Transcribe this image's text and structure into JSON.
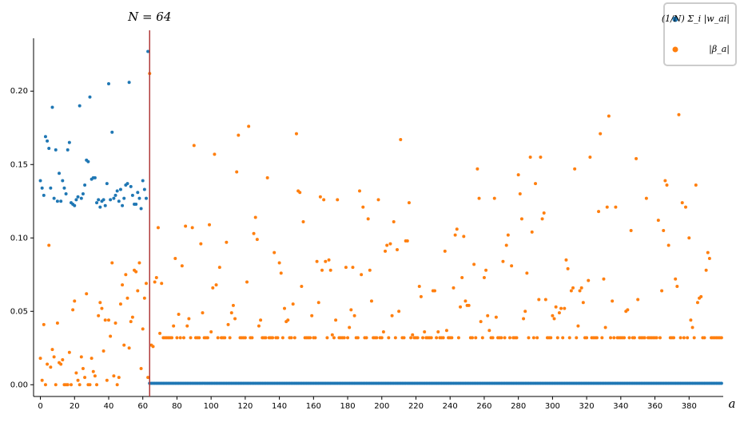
{
  "chart_data": {
    "type": "scatter",
    "x_label": "a",
    "legend": "upper right",
    "xlim": [
      -4,
      400
    ],
    "ylim": [
      -0.008,
      0.236
    ],
    "xticks": [
      0,
      20,
      40,
      60,
      80,
      100,
      120,
      140,
      160,
      180,
      200,
      220,
      240,
      260,
      280,
      300,
      320,
      340,
      360,
      380
    ],
    "yticks": [
      {
        "value": 0,
        "label": "0.00"
      },
      {
        "value": 0.05,
        "label": "0.05"
      },
      {
        "value": 0.1,
        "label": "0.10"
      },
      {
        "value": 0.15,
        "label": "0.15"
      },
      {
        "value": 0.2,
        "label": "0.20"
      }
    ],
    "vline": {
      "x": 64,
      "label": "N = 64",
      "color": "#b03a3a"
    },
    "x": [
      0,
      1,
      2,
      3,
      4,
      5,
      6,
      7,
      8,
      9,
      10,
      11,
      12,
      13,
      14,
      15,
      16,
      17,
      18,
      19,
      20,
      21,
      22,
      23,
      24,
      25,
      26,
      27,
      28,
      29,
      30,
      31,
      32,
      33,
      34,
      35,
      36,
      37,
      38,
      39,
      40,
      41,
      42,
      43,
      44,
      45,
      46,
      47,
      48,
      49,
      50,
      51,
      52,
      53,
      54,
      55,
      56,
      57,
      58,
      59,
      60,
      61,
      62,
      63,
      64,
      65,
      66,
      67,
      68,
      69,
      70,
      71,
      72,
      73,
      74,
      75,
      76,
      77,
      78,
      79,
      80,
      81,
      82,
      83,
      84,
      85,
      86,
      87,
      88,
      89,
      90,
      91,
      92,
      93,
      94,
      95,
      96,
      97,
      98,
      99,
      100,
      101,
      102,
      103,
      104,
      105,
      106,
      107,
      108,
      109,
      110,
      111,
      112,
      113,
      114,
      115,
      116,
      117,
      118,
      119,
      120,
      121,
      122,
      123,
      124,
      125,
      126,
      127,
      128,
      129,
      130,
      131,
      132,
      133,
      134,
      135,
      136,
      137,
      138,
      139,
      140,
      141,
      142,
      143,
      144,
      145,
      146,
      147,
      148,
      149,
      150,
      151,
      152,
      153,
      154,
      155,
      156,
      157,
      158,
      159,
      160,
      161,
      162,
      163,
      164,
      165,
      166,
      167,
      168,
      169,
      170,
      171,
      172,
      173,
      174,
      175,
      176,
      177,
      178,
      179,
      180,
      181,
      182,
      183,
      184,
      185,
      186,
      187,
      188,
      189,
      190,
      191,
      192,
      193,
      194,
      195,
      196,
      197,
      198,
      199,
      200,
      201,
      202,
      203,
      204,
      205,
      206,
      207,
      208,
      209,
      210,
      211,
      212,
      213,
      214,
      215,
      216,
      217,
      218,
      219,
      220,
      221,
      222,
      223,
      224,
      225,
      226,
      227,
      228,
      229,
      230,
      231,
      232,
      233,
      234,
      235,
      236,
      237,
      238,
      239,
      240,
      241,
      242,
      243,
      244,
      245,
      246,
      247,
      248,
      249,
      250,
      251,
      252,
      253,
      254,
      255,
      256,
      257,
      258,
      259,
      260,
      261,
      262,
      263,
      264,
      265,
      266,
      267,
      268,
      269,
      270,
      271,
      272,
      273,
      274,
      275,
      276,
      277,
      278,
      279,
      280,
      281,
      282,
      283,
      284,
      285,
      286,
      287,
      288,
      289,
      290,
      291,
      292,
      293,
      294,
      295,
      296,
      297,
      298,
      299,
      300,
      301,
      302,
      303,
      304,
      305,
      306,
      307,
      308,
      309,
      310,
      311,
      312,
      313,
      314,
      315,
      316,
      317,
      318,
      319,
      320,
      321,
      322,
      323,
      324,
      325,
      326,
      327,
      328,
      329,
      330,
      331,
      332,
      333,
      334,
      335,
      336,
      337,
      338,
      339,
      340,
      341,
      342,
      343,
      344,
      345,
      346,
      347,
      348,
      349,
      350,
      351,
      352,
      353,
      354,
      355,
      356,
      357,
      358,
      359,
      360,
      361,
      362,
      363,
      364,
      365,
      366,
      367,
      368,
      369,
      370,
      371,
      372,
      373,
      374,
      375,
      376,
      377,
      378,
      379,
      380,
      381,
      382,
      383,
      384,
      385,
      386,
      387,
      388,
      389,
      390,
      391,
      392,
      393,
      394,
      395,
      396,
      397,
      398,
      399
    ],
    "series": [
      {
        "name": "(1/N) Σ_i |w_ai|",
        "color": "#1f77b4",
        "values": [
          0.139,
          0.134,
          0.129,
          0.169,
          0.166,
          0.161,
          0.134,
          0.189,
          0.127,
          0.16,
          0.125,
          0.144,
          0.125,
          0.139,
          0.134,
          0.13,
          0.16,
          0.165,
          0.124,
          0.123,
          0.122,
          0.126,
          0.128,
          0.19,
          0.127,
          0.13,
          0.136,
          0.153,
          0.152,
          0.196,
          0.14,
          0.141,
          0.141,
          0.124,
          0.126,
          0.121,
          0.125,
          0.126,
          0.122,
          0.137,
          0.205,
          0.126,
          0.172,
          0.127,
          0.129,
          0.132,
          0.125,
          0.133,
          0.122,
          0.127,
          0.136,
          0.137,
          0.206,
          0.135,
          0.129,
          0.123,
          0.123,
          0.131,
          0.127,
          0.12,
          0.139,
          0.133,
          0.127,
          0.227,
          0.001,
          0.001,
          0.001,
          0.001,
          0.001,
          0.001,
          0.001,
          0.001,
          0.001,
          0.001,
          0.001,
          0.001,
          0.001,
          0.001,
          0.001,
          0.001,
          0.001,
          0.001,
          0.001,
          0.001,
          0.001,
          0.001,
          0.001,
          0.001,
          0.001,
          0.001,
          0.001,
          0.001,
          0.001,
          0.001,
          0.001,
          0.001,
          0.001,
          0.001,
          0.001,
          0.001,
          0.001,
          0.001,
          0.001,
          0.001,
          0.001,
          0.001,
          0.001,
          0.001,
          0.001,
          0.001,
          0.001,
          0.001,
          0.001,
          0.001,
          0.001,
          0.001,
          0.001,
          0.001,
          0.001,
          0.001,
          0.001,
          0.001,
          0.001,
          0.001,
          0.001,
          0.001,
          0.001,
          0.001,
          0.001,
          0.001,
          0.001,
          0.001,
          0.001,
          0.001,
          0.001,
          0.001,
          0.001,
          0.001,
          0.001,
          0.001,
          0.001,
          0.001,
          0.001,
          0.001,
          0.001,
          0.001,
          0.001,
          0.001,
          0.001,
          0.001,
          0.001,
          0.001,
          0.001,
          0.001,
          0.001,
          0.001,
          0.001,
          0.001,
          0.001,
          0.001,
          0.001,
          0.001,
          0.001,
          0.001,
          0.001,
          0.001,
          0.001,
          0.001,
          0.001,
          0.001,
          0.001,
          0.001,
          0.001,
          0.001,
          0.001,
          0.001,
          0.001,
          0.001,
          0.001,
          0.001,
          0.001,
          0.001,
          0.001,
          0.001,
          0.001,
          0.001,
          0.001,
          0.001,
          0.001,
          0.001,
          0.001,
          0.001,
          0.001,
          0.001,
          0.001,
          0.001,
          0.001,
          0.001,
          0.001,
          0.001,
          0.001,
          0.001,
          0.001,
          0.001,
          0.001,
          0.001,
          0.001,
          0.001,
          0.001,
          0.001,
          0.001,
          0.001,
          0.001,
          0.001,
          0.001,
          0.001,
          0.001,
          0.001,
          0.001,
          0.001,
          0.001,
          0.001,
          0.001,
          0.001,
          0.001,
          0.001,
          0.001,
          0.001,
          0.001,
          0.001,
          0.001,
          0.001,
          0.001,
          0.001,
          0.001,
          0.001,
          0.001,
          0.001,
          0.001,
          0.001,
          0.001,
          0.001,
          0.001,
          0.001,
          0.001,
          0.001,
          0.001,
          0.001,
          0.001,
          0.001,
          0.001,
          0.001,
          0.001,
          0.001,
          0.001,
          0.001,
          0.001,
          0.001,
          0.001,
          0.001,
          0.001,
          0.001,
          0.001,
          0.001,
          0.001,
          0.001,
          0.001,
          0.001,
          0.001,
          0.001,
          0.001,
          0.001,
          0.001,
          0.001,
          0.001,
          0.001,
          0.001,
          0.001,
          0.001,
          0.001,
          0.001,
          0.001,
          0.001,
          0.001,
          0.001,
          0.001,
          0.001,
          0.001,
          0.001,
          0.001,
          0.001,
          0.001,
          0.001,
          0.001,
          0.001,
          0.001,
          0.001,
          0.001,
          0.001,
          0.001,
          0.001,
          0.001,
          0.001,
          0.001,
          0.001,
          0.001,
          0.001,
          0.001,
          0.001,
          0.001,
          0.001,
          0.001,
          0.001,
          0.001,
          0.001,
          0.001,
          0.001,
          0.001,
          0.001,
          0.001,
          0.001,
          0.001,
          0.001,
          0.001,
          0.001,
          0.001,
          0.001,
          0.001,
          0.001,
          0.001,
          0.001,
          0.001,
          0.001,
          0.001,
          0.001,
          0.001,
          0.001,
          0.001,
          0.001,
          0.001,
          0.001,
          0.001,
          0.001,
          0.001,
          0.001,
          0.001,
          0.001,
          0.001,
          0.001,
          0.001,
          0.001,
          0.001,
          0.001,
          0.001,
          0.001,
          0.001,
          0.001,
          0.001,
          0.001,
          0.001,
          0.001,
          0.001,
          0.001,
          0.001,
          0.001,
          0.001,
          0.001,
          0.001,
          0.001,
          0.001,
          0.001,
          0.001,
          0.001,
          0.001,
          0.001,
          0.001,
          0.001,
          0.001,
          0.001,
          0.001,
          0.001,
          0.001,
          0.001,
          0.001,
          0.001,
          0.001,
          0.001,
          0.001,
          0.001,
          0.001,
          0.001,
          0.001,
          0.001,
          0.001,
          0.001,
          0.001,
          0.001,
          0.001,
          0.001,
          0.001
        ]
      },
      {
        "name": "|β_a|",
        "color": "#ff7f0e",
        "values": [
          0.018,
          0.003,
          0.041,
          0.0,
          0.014,
          0.095,
          0.012,
          0.024,
          0.019,
          0.0,
          0.042,
          0.015,
          0.014,
          0.017,
          0.0,
          0.0,
          0.0,
          0.022,
          0.0,
          0.051,
          0.057,
          0.008,
          0.003,
          0.0,
          0.019,
          0.011,
          0.005,
          0.062,
          0.0,
          0.0,
          0.018,
          0.009,
          0.006,
          0.0,
          0.047,
          0.056,
          0.052,
          0.023,
          0.044,
          0.003,
          0.044,
          0.033,
          0.083,
          0.006,
          0.042,
          0.0,
          0.005,
          0.055,
          0.068,
          0.027,
          0.075,
          0.059,
          0.025,
          0.043,
          0.046,
          0.078,
          0.077,
          0.064,
          0.083,
          0.011,
          0.038,
          0.059,
          0.069,
          0.005,
          0.212,
          0.027,
          0.026,
          0.07,
          0.073,
          0.107,
          0.035,
          0.069,
          0.032,
          0.032,
          0.032,
          0.032,
          0.032,
          0.032,
          0.04,
          0.086,
          0.032,
          0.048,
          0.032,
          0.081,
          0.032,
          0.108,
          0.04,
          0.045,
          0.032,
          0.107,
          0.163,
          0.032,
          0.032,
          0.032,
          0.096,
          0.049,
          0.032,
          0.032,
          0.032,
          0.109,
          0.036,
          0.066,
          0.157,
          0.068,
          0.032,
          0.08,
          0.032,
          0.032,
          0.032,
          0.097,
          0.041,
          0.032,
          0.049,
          0.054,
          0.045,
          0.145,
          0.17,
          0.032,
          0.032,
          0.032,
          0.032,
          0.07,
          0.176,
          0.032,
          0.032,
          0.103,
          0.114,
          0.099,
          0.04,
          0.044,
          0.032,
          0.032,
          0.032,
          0.141,
          0.032,
          0.032,
          0.032,
          0.09,
          0.032,
          0.032,
          0.083,
          0.076,
          0.032,
          0.052,
          0.043,
          0.044,
          0.032,
          0.032,
          0.055,
          0.032,
          0.171,
          0.132,
          0.131,
          0.067,
          0.111,
          0.032,
          0.032,
          0.032,
          0.032,
          0.047,
          0.032,
          0.032,
          0.084,
          0.056,
          0.128,
          0.078,
          0.126,
          0.084,
          0.032,
          0.085,
          0.078,
          0.034,
          0.032,
          0.044,
          0.126,
          0.032,
          0.032,
          0.032,
          0.032,
          0.08,
          0.032,
          0.039,
          0.051,
          0.08,
          0.047,
          0.032,
          0.032,
          0.132,
          0.075,
          0.121,
          0.032,
          0.032,
          0.113,
          0.078,
          0.057,
          0.032,
          0.032,
          0.032,
          0.126,
          0.032,
          0.032,
          0.036,
          0.091,
          0.095,
          0.032,
          0.096,
          0.047,
          0.111,
          0.032,
          0.092,
          0.05,
          0.167,
          0.032,
          0.032,
          0.098,
          0.098,
          0.124,
          0.032,
          0.034,
          0.032,
          0.032,
          0.032,
          0.067,
          0.06,
          0.032,
          0.036,
          0.032,
          0.032,
          0.032,
          0.032,
          0.064,
          0.064,
          0.032,
          0.036,
          0.032,
          0.032,
          0.032,
          0.091,
          0.037,
          0.032,
          0.032,
          0.032,
          0.066,
          0.102,
          0.106,
          0.032,
          0.053,
          0.073,
          0.101,
          0.057,
          0.054,
          0.054,
          0.032,
          0.032,
          0.082,
          0.032,
          0.147,
          0.127,
          0.043,
          0.032,
          0.073,
          0.078,
          0.047,
          0.037,
          0.032,
          0.032,
          0.127,
          0.046,
          0.032,
          0.032,
          0.032,
          0.084,
          0.032,
          0.095,
          0.102,
          0.032,
          0.081,
          0.032,
          0.032,
          0.032,
          0.143,
          0.13,
          0.113,
          0.045,
          0.05,
          0.076,
          0.032,
          0.155,
          0.104,
          0.032,
          0.137,
          0.032,
          0.058,
          0.155,
          0.113,
          0.117,
          0.058,
          0.032,
          0.032,
          0.032,
          0.047,
          0.045,
          0.053,
          0.032,
          0.049,
          0.052,
          0.032,
          0.052,
          0.085,
          0.079,
          0.032,
          0.064,
          0.066,
          0.147,
          0.032,
          0.04,
          0.064,
          0.066,
          0.056,
          0.032,
          0.032,
          0.071,
          0.155,
          0.032,
          0.032,
          0.032,
          0.032,
          0.118,
          0.171,
          0.032,
          0.072,
          0.039,
          0.121,
          0.183,
          0.032,
          0.057,
          0.032,
          0.121,
          0.032,
          0.032,
          0.032,
          0.032,
          0.032,
          0.05,
          0.051,
          0.032,
          0.105,
          0.032,
          0.032,
          0.154,
          0.058,
          0.032,
          0.032,
          0.032,
          0.032,
          0.127,
          0.032,
          0.032,
          0.032,
          0.032,
          0.032,
          0.032,
          0.112,
          0.032,
          0.064,
          0.105,
          0.139,
          0.136,
          0.095,
          0.032,
          0.032,
          0.032,
          0.072,
          0.067,
          0.184,
          0.032,
          0.124,
          0.032,
          0.121,
          0.032,
          0.1,
          0.044,
          0.039,
          0.032,
          0.136,
          0.056,
          0.059,
          0.06,
          0.032,
          0.032,
          0.078,
          0.09,
          0.086,
          0.032,
          0.032,
          0.032,
          0.032,
          0.032,
          0.032,
          0.032
        ]
      }
    ]
  }
}
